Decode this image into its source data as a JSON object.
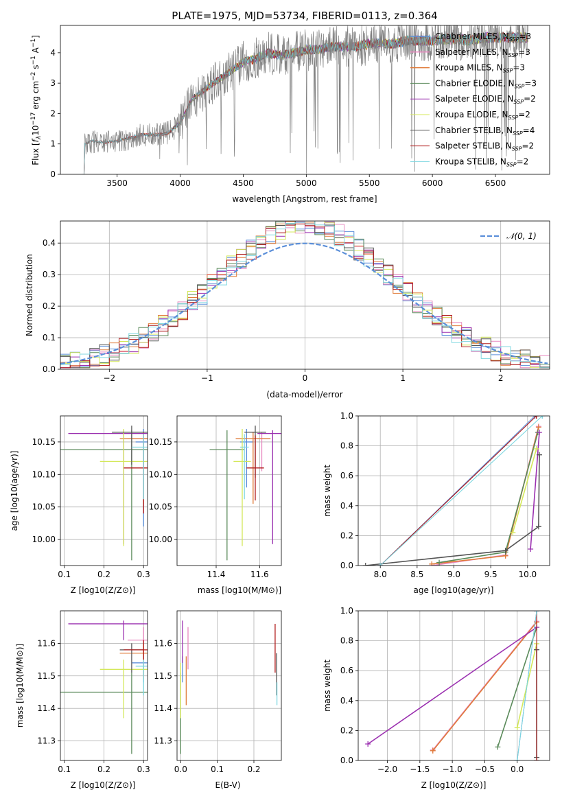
{
  "colors": {
    "chabrier_miles": "#5b8fd9",
    "salpeter_miles": "#e889c0",
    "kroupa_miles": "#e07b39",
    "chabrier_elodie": "#5a8a5a",
    "salpeter_elodie": "#9b30b0",
    "kroupa_elodie": "#d4e85a",
    "chabrier_stelib": "#555555",
    "salpeter_stelib": "#b01a1a",
    "kroupa_stelib": "#7fd7e0",
    "spectrum": "#808080",
    "normal_curve": "#5b8fd9"
  },
  "chart_data": [
    {
      "id": "spectrum",
      "type": "line",
      "title": "PLATE=1975, MJD=53734, FIBERID=0113, z=0.364",
      "xlabel": "wavelength [Angstrom, rest frame]",
      "ylabel": "Flux [f_λ 10^-17 erg cm^-2 s^-1 A^-1]",
      "xlim": [
        3050,
        6930
      ],
      "ylim": [
        0,
        4.9
      ],
      "xticks": [
        "3500",
        "4000",
        "4500",
        "5000",
        "5500",
        "6000",
        "6500"
      ],
      "yticks": [
        "0",
        "1",
        "2",
        "3",
        "4"
      ],
      "legend_position": "upper-right",
      "legend": [
        {
          "label": "Chabrier MILES, N",
          "sub": "SSP",
          "suffix": "=3"
        },
        {
          "label": "Salpeter MILES, N",
          "sub": "SSP",
          "suffix": "=3"
        },
        {
          "label": "Kroupa MILES, N",
          "sub": "SSP",
          "suffix": "=3"
        },
        {
          "label": "Chabrier ELODIE, N",
          "sub": "SSP",
          "suffix": "=3"
        },
        {
          "label": "Salpeter ELODIE, N",
          "sub": "SSP",
          "suffix": "=2"
        },
        {
          "label": "Kroupa ELODIE, N",
          "sub": "SSP",
          "suffix": "=2"
        },
        {
          "label": "Chabrier STELIB, N",
          "sub": "SSP",
          "suffix": "=4"
        },
        {
          "label": "Salpeter STELIB, N",
          "sub": "SSP",
          "suffix": "=2"
        },
        {
          "label": "Kroupa STELIB, N",
          "sub": "SSP",
          "suffix": "=2"
        }
      ],
      "continuum_x": [
        3220,
        3240,
        3300,
        3400,
        3500,
        3600,
        3700,
        3800,
        3900,
        4000,
        4100,
        4200,
        4300,
        4400,
        4500,
        4600,
        4700,
        4800,
        4900,
        5000,
        5100,
        5200,
        5300,
        5400,
        5500,
        5600,
        5700,
        5800,
        5900,
        6000,
        6100,
        6200,
        6300,
        6400,
        6500,
        6600,
        6700,
        6760
      ],
      "continuum_y": [
        0,
        1.0,
        1.1,
        1.05,
        1.1,
        1.2,
        1.3,
        1.3,
        1.35,
        1.7,
        2.5,
        2.8,
        3.1,
        3.4,
        3.7,
        3.8,
        4.0,
        3.9,
        4.0,
        4.1,
        4.1,
        4.2,
        4.2,
        4.2,
        4.3,
        4.3,
        4.3,
        4.4,
        4.4,
        4.4,
        4.45,
        4.45,
        4.4,
        4.5,
        4.5,
        4.5,
        4.5,
        4.5
      ]
    },
    {
      "id": "residuals",
      "type": "line",
      "xlabel": "(data-model)/error",
      "ylabel": "Normed distribution",
      "xlim": [
        -2.5,
        2.5
      ],
      "ylim": [
        0,
        0.47
      ],
      "xticks": [
        "−2",
        "−1",
        "0",
        "1",
        "2"
      ],
      "yticks": [
        "0.0",
        "0.1",
        "0.2",
        "0.3",
        "0.4"
      ],
      "grid": true,
      "legend_position": "upper-right",
      "normal_label": "𝒩(0, 1)"
    },
    {
      "id": "age_vs_Z",
      "type": "scatter",
      "xlabel": "Z [log10(Z/Z⊙)]",
      "ylabel": "age  [log10(age/yr)]",
      "xlim": [
        0.09,
        0.31
      ],
      "ylim": [
        9.96,
        10.19
      ],
      "xticks": [
        "0.1",
        "0.2",
        "0.3"
      ],
      "yticks": [
        "10.00",
        "10.05",
        "10.10",
        "10.15"
      ],
      "grid": true,
      "points": [
        {
          "model": "chabrier_miles",
          "x": 0.3,
          "y": 10.15,
          "xerr": 0.02,
          "yerr": [
            0.13,
            0.02
          ]
        },
        {
          "model": "salpeter_miles",
          "x": 0.3,
          "y": 10.155,
          "xerr": 0.04,
          "yerr": [
            0.05,
            0.01
          ]
        },
        {
          "model": "kroupa_miles",
          "x": 0.3,
          "y": 10.155,
          "xerr": 0.06,
          "yerr": [
            0.1,
            0.01
          ]
        },
        {
          "model": "chabrier_elodie",
          "x": 0.27,
          "y": 10.138,
          "xerr": 0.18,
          "yerr": [
            0.17,
            0.03
          ]
        },
        {
          "model": "salpeter_elodie",
          "x": 0.25,
          "y": 10.163,
          "xerr": 0.14,
          "yerr": [
            0.17,
            0.005
          ]
        },
        {
          "model": "kroupa_elodie",
          "x": 0.25,
          "y": 10.12,
          "xerr": 0.06,
          "yerr": [
            0.13,
            0.05
          ]
        },
        {
          "model": "chabrier_stelib",
          "x": 0.27,
          "y": 10.165,
          "xerr": 0.05,
          "yerr": [
            0.05,
            0.01
          ]
        },
        {
          "model": "salpeter_stelib",
          "x": 0.3,
          "y": 10.11,
          "xerr": 0.05,
          "yerr": [
            0.07,
            0.05
          ]
        },
        {
          "model": "kroupa_stelib",
          "x": 0.3,
          "y": 10.142,
          "xerr": 0.03,
          "yerr": [
            0.08,
            0.02
          ]
        }
      ]
    },
    {
      "id": "age_vs_mass",
      "type": "scatter",
      "xlabel": "mass [log10(M/M⊙)]",
      "ylabel": "",
      "xlim": [
        11.22,
        11.7
      ],
      "ylim": [
        9.96,
        10.19
      ],
      "xticks": [
        "11.4",
        "11.6"
      ],
      "yticks": [
        "10.00",
        "10.05",
        "10.10",
        "10.15"
      ],
      "grid": true,
      "points": [
        {
          "model": "chabrier_miles",
          "x": 11.54,
          "y": 10.15,
          "xerr": 0.03,
          "yerr": [
            0.07,
            0.02
          ]
        },
        {
          "model": "salpeter_miles",
          "x": 11.61,
          "y": 10.155,
          "xerr": 0.04,
          "yerr": [
            0.05,
            0.01
          ]
        },
        {
          "model": "kroupa_miles",
          "x": 11.57,
          "y": 10.155,
          "xerr": 0.08,
          "yerr": [
            0.1,
            0.01
          ]
        },
        {
          "model": "chabrier_elodie",
          "x": 11.45,
          "y": 10.138,
          "xerr": 0.08,
          "yerr": [
            0.17,
            0.03
          ]
        },
        {
          "model": "salpeter_elodie",
          "x": 11.66,
          "y": 10.163,
          "xerr": 0.07,
          "yerr": [
            0.17,
            0.005
          ]
        },
        {
          "model": "kroupa_elodie",
          "x": 11.52,
          "y": 10.12,
          "xerr": 0.04,
          "yerr": [
            0.13,
            0.05
          ]
        },
        {
          "model": "chabrier_stelib",
          "x": 11.58,
          "y": 10.165,
          "xerr": 0.05,
          "yerr": [
            0.07,
            0.01
          ]
        },
        {
          "model": "salpeter_stelib",
          "x": 11.58,
          "y": 10.11,
          "xerr": 0.04,
          "yerr": [
            0.05,
            0.05
          ]
        },
        {
          "model": "kroupa_stelib",
          "x": 11.53,
          "y": 10.142,
          "xerr": 0.02,
          "yerr": [
            0.08,
            0.02
          ]
        }
      ]
    },
    {
      "id": "mass_weight_vs_age",
      "type": "line",
      "xlabel": "age  [log10(age/yr)]",
      "ylabel": "mass weight",
      "xlim": [
        7.7,
        10.3
      ],
      "ylim": [
        0,
        1
      ],
      "xticks": [
        "7.5",
        "8.0",
        "8.5",
        "9.0",
        "9.5",
        "10.0"
      ],
      "yticks": [
        "0.0",
        "0.2",
        "0.4",
        "0.6",
        "0.8",
        "1.0"
      ],
      "grid": true,
      "series": [
        {
          "model": "chabrier_miles",
          "x": [
            8.0,
            10.1
          ],
          "y": [
            0.0,
            1.0
          ]
        },
        {
          "model": "salpeter_miles",
          "x": [
            8.7,
            9.7,
            10.15
          ],
          "y": [
            0.0,
            0.07,
            0.93
          ]
        },
        {
          "model": "kroupa_miles",
          "x": [
            8.7,
            9.7,
            10.15
          ],
          "y": [
            0.01,
            0.065,
            0.925
          ]
        },
        {
          "model": "chabrier_elodie",
          "x": [
            8.8,
            9.7,
            10.14
          ],
          "y": [
            0.02,
            0.09,
            0.89
          ]
        },
        {
          "model": "salpeter_elodie",
          "x": [
            10.04,
            10.16
          ],
          "y": [
            0.11,
            0.89
          ]
        },
        {
          "model": "kroupa_elodie",
          "x": [
            9.8,
            10.12
          ],
          "y": [
            0.22,
            0.78
          ]
        },
        {
          "model": "chabrier_stelib",
          "x": [
            7.8,
            9.7,
            10.15,
            10.16
          ],
          "y": [
            0.0,
            0.1,
            0.26,
            0.74
          ]
        },
        {
          "model": "salpeter_stelib",
          "x": [
            8.0,
            10.12
          ],
          "y": [
            0.0,
            1.0
          ]
        },
        {
          "model": "kroupa_stelib",
          "x": [
            8.0,
            10.2
          ],
          "y": [
            0.0,
            1.0
          ]
        }
      ]
    },
    {
      "id": "mass_vs_Z",
      "type": "scatter",
      "xlabel": "Z [log10(Z/Z⊙)]",
      "ylabel": "mass [log10(M/M⊙)]",
      "xlim": [
        0.09,
        0.31
      ],
      "ylim": [
        11.24,
        11.7
      ],
      "xticks": [
        "0.1",
        "0.2",
        "0.3"
      ],
      "yticks": [
        "11.3",
        "11.4",
        "11.5",
        "11.6"
      ],
      "grid": true,
      "points": [
        {
          "model": "chabrier_miles",
          "x": 0.3,
          "y": 11.54,
          "xerr": 0.03,
          "yerr": [
            0.06,
            0.02
          ]
        },
        {
          "model": "salpeter_miles",
          "x": 0.3,
          "y": 11.61,
          "xerr": 0.04,
          "yerr": [
            0.05,
            0.04
          ]
        },
        {
          "model": "kroupa_miles",
          "x": 0.3,
          "y": 11.57,
          "xerr": 0.06,
          "yerr": [
            0.08,
            0.03
          ]
        },
        {
          "model": "chabrier_elodie",
          "x": 0.27,
          "y": 11.45,
          "xerr": 0.18,
          "yerr": [
            0.19,
            0.06
          ]
        },
        {
          "model": "salpeter_elodie",
          "x": 0.25,
          "y": 11.66,
          "xerr": 0.14,
          "yerr": [
            0.05,
            0.01
          ]
        },
        {
          "model": "kroupa_elodie",
          "x": 0.25,
          "y": 11.52,
          "xerr": 0.06,
          "yerr": [
            0.15,
            0.03
          ]
        },
        {
          "model": "chabrier_stelib",
          "x": 0.27,
          "y": 11.58,
          "xerr": 0.03,
          "yerr": [
            0.07,
            0.02
          ]
        },
        {
          "model": "salpeter_stelib",
          "x": 0.3,
          "y": 11.58,
          "xerr": 0.05,
          "yerr": [
            0.03,
            0.03
          ]
        },
        {
          "model": "kroupa_stelib",
          "x": 0.3,
          "y": 11.53,
          "xerr": 0.02,
          "yerr": [
            0.09,
            0.02
          ]
        }
      ]
    },
    {
      "id": "mass_vs_ebv",
      "type": "scatter",
      "xlabel": "E(B-V)",
      "ylabel": "",
      "xlim": [
        -0.01,
        0.275
      ],
      "ylim": [
        11.24,
        11.7
      ],
      "xticks": [
        "0.0",
        "0.1",
        "0.2"
      ],
      "yticks": [
        "11.3",
        "11.4",
        "11.5",
        "11.6"
      ],
      "grid": true,
      "points": [
        {
          "model": "chabrier_miles",
          "x": 0.005,
          "y": 11.54,
          "yerr": [
            0.06,
            0.02
          ]
        },
        {
          "model": "salpeter_miles",
          "x": 0.02,
          "y": 11.6,
          "yerr": [
            0.08,
            0.05
          ]
        },
        {
          "model": "kroupa_miles",
          "x": 0.015,
          "y": 11.49,
          "yerr": [
            0.08,
            0.07
          ]
        },
        {
          "model": "chabrier_elodie",
          "x": 0.0,
          "y": 11.45,
          "yerr": [
            0.19,
            0.06
          ]
        },
        {
          "model": "salpeter_elodie",
          "x": 0.005,
          "y": 11.62,
          "yerr": [
            0.08,
            0.05
          ]
        },
        {
          "model": "kroupa_elodie",
          "x": 0.0,
          "y": 11.47,
          "yerr": [
            0.1,
            0.07
          ]
        },
        {
          "model": "chabrier_stelib",
          "x": 0.262,
          "y": 11.5,
          "yerr": [
            0.06,
            0.07
          ]
        },
        {
          "model": "salpeter_stelib",
          "x": 0.258,
          "y": 11.58,
          "yerr": [
            0.07,
            0.08
          ]
        },
        {
          "model": "kroupa_stelib",
          "x": 0.263,
          "y": 11.44,
          "yerr": [
            0.03,
            0.04
          ]
        }
      ]
    },
    {
      "id": "mass_weight_vs_Z",
      "type": "line",
      "xlabel": "Z [log10(Z/Z⊙)]",
      "ylabel": "mass weight",
      "xlim": [
        -2.45,
        0.5
      ],
      "ylim": [
        0,
        1
      ],
      "xticks": [
        "−2.0",
        "−1.5",
        "−1.0",
        "−0.5",
        "0.0"
      ],
      "yticks": [
        "0.0",
        "0.2",
        "0.4",
        "0.6",
        "0.8",
        "1.0"
      ],
      "grid": true,
      "series": [
        {
          "model": "chabrier_miles",
          "x": [
            0.0,
            0.3
          ],
          "y": [
            0.0,
            1.0
          ]
        },
        {
          "model": "salpeter_miles",
          "x": [
            -1.3,
            0.3
          ],
          "y": [
            0.07,
            0.93
          ]
        },
        {
          "model": "kroupa_miles",
          "x": [
            -1.3,
            0.3
          ],
          "y": [
            0.065,
            0.925
          ]
        },
        {
          "model": "chabrier_elodie",
          "x": [
            -0.3,
            0.3
          ],
          "y": [
            0.09,
            0.89
          ]
        },
        {
          "model": "salpeter_elodie",
          "x": [
            -2.3,
            0.3
          ],
          "y": [
            0.11,
            0.89
          ]
        },
        {
          "model": "kroupa_elodie",
          "x": [
            0.0,
            0.3
          ],
          "y": [
            0.22,
            0.78
          ]
        },
        {
          "model": "chabrier_stelib",
          "x": [
            0.3,
            0.3
          ],
          "y": [
            0.02,
            0.74
          ]
        },
        {
          "model": "salpeter_stelib",
          "x": [
            0.3,
            0.3
          ],
          "y": [
            0.0,
            1.0
          ]
        },
        {
          "model": "kroupa_stelib",
          "x": [
            0.0,
            0.3
          ],
          "y": [
            0.0,
            1.0
          ]
        }
      ]
    }
  ]
}
